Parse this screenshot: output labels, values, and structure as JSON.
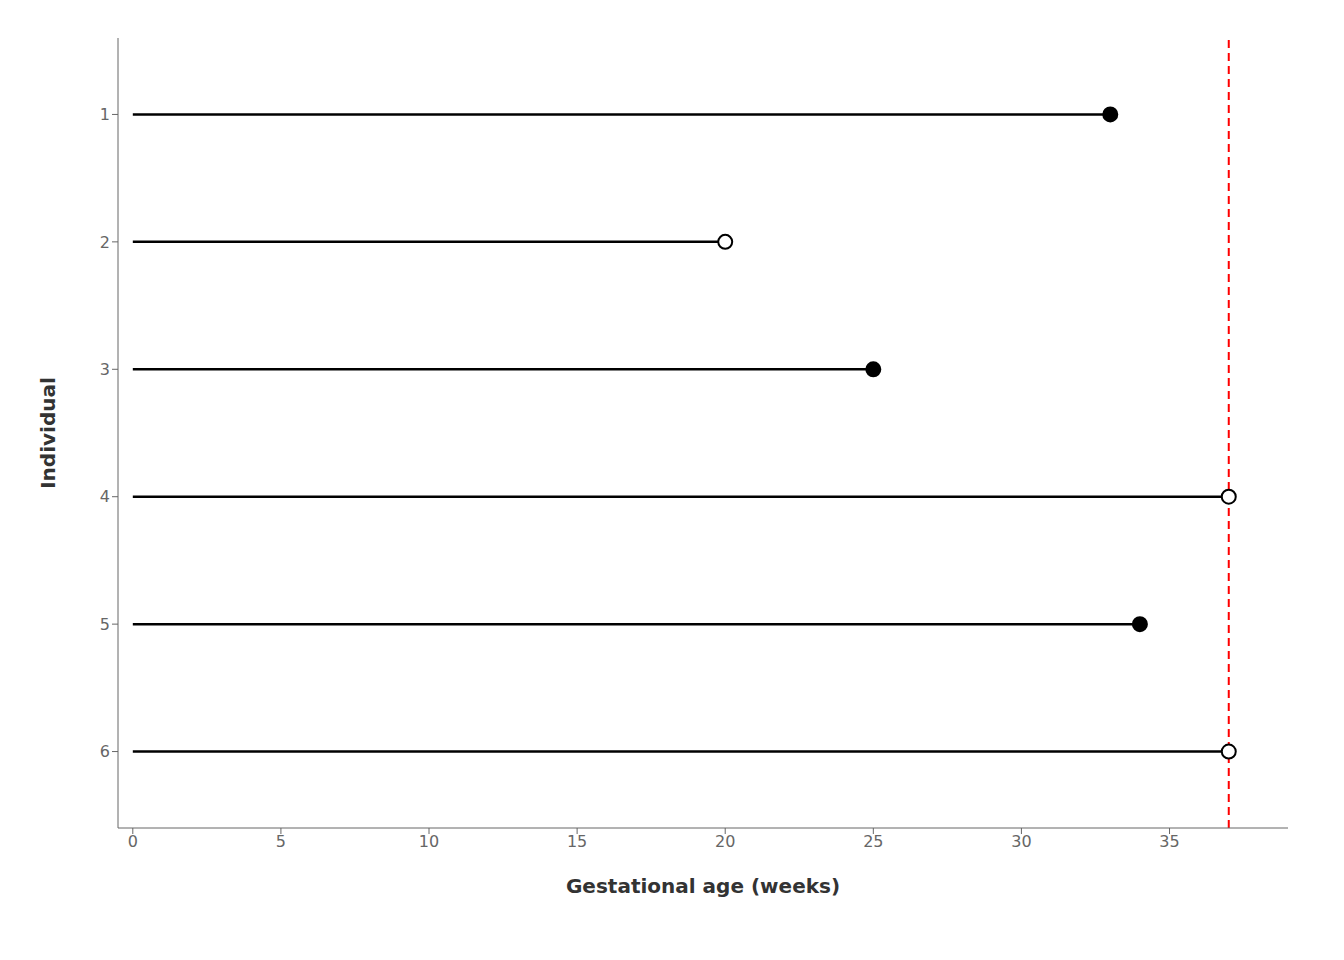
{
  "chart_data": {
    "type": "line",
    "xlabel": "Gestational age (weeks)",
    "ylabel": "Individual",
    "lines": [
      {
        "y": 1,
        "x_start": 0,
        "x_end": 33,
        "marker": "filled"
      },
      {
        "y": 2,
        "x_start": 0,
        "x_end": 20,
        "marker": "open"
      },
      {
        "y": 3,
        "x_start": 0,
        "x_end": 25,
        "marker": "filled"
      },
      {
        "y": 4,
        "x_start": 0,
        "x_end": 37,
        "marker": "open"
      },
      {
        "y": 5,
        "x_start": 0,
        "x_end": 34,
        "marker": "filled"
      },
      {
        "y": 6,
        "x_start": 0,
        "x_end": 37,
        "marker": "open"
      }
    ],
    "vline": {
      "x": 37,
      "color": "red",
      "line_style": "dashed"
    },
    "color": "black",
    "xlim": [
      -0.5,
      39
    ],
    "ylim": [
      0.4,
      6.6
    ],
    "xticks": [
      0,
      5,
      10,
      15,
      20,
      25,
      30,
      35
    ],
    "yticks": [
      1,
      2,
      3,
      4,
      5,
      6
    ],
    "grid": false
  }
}
